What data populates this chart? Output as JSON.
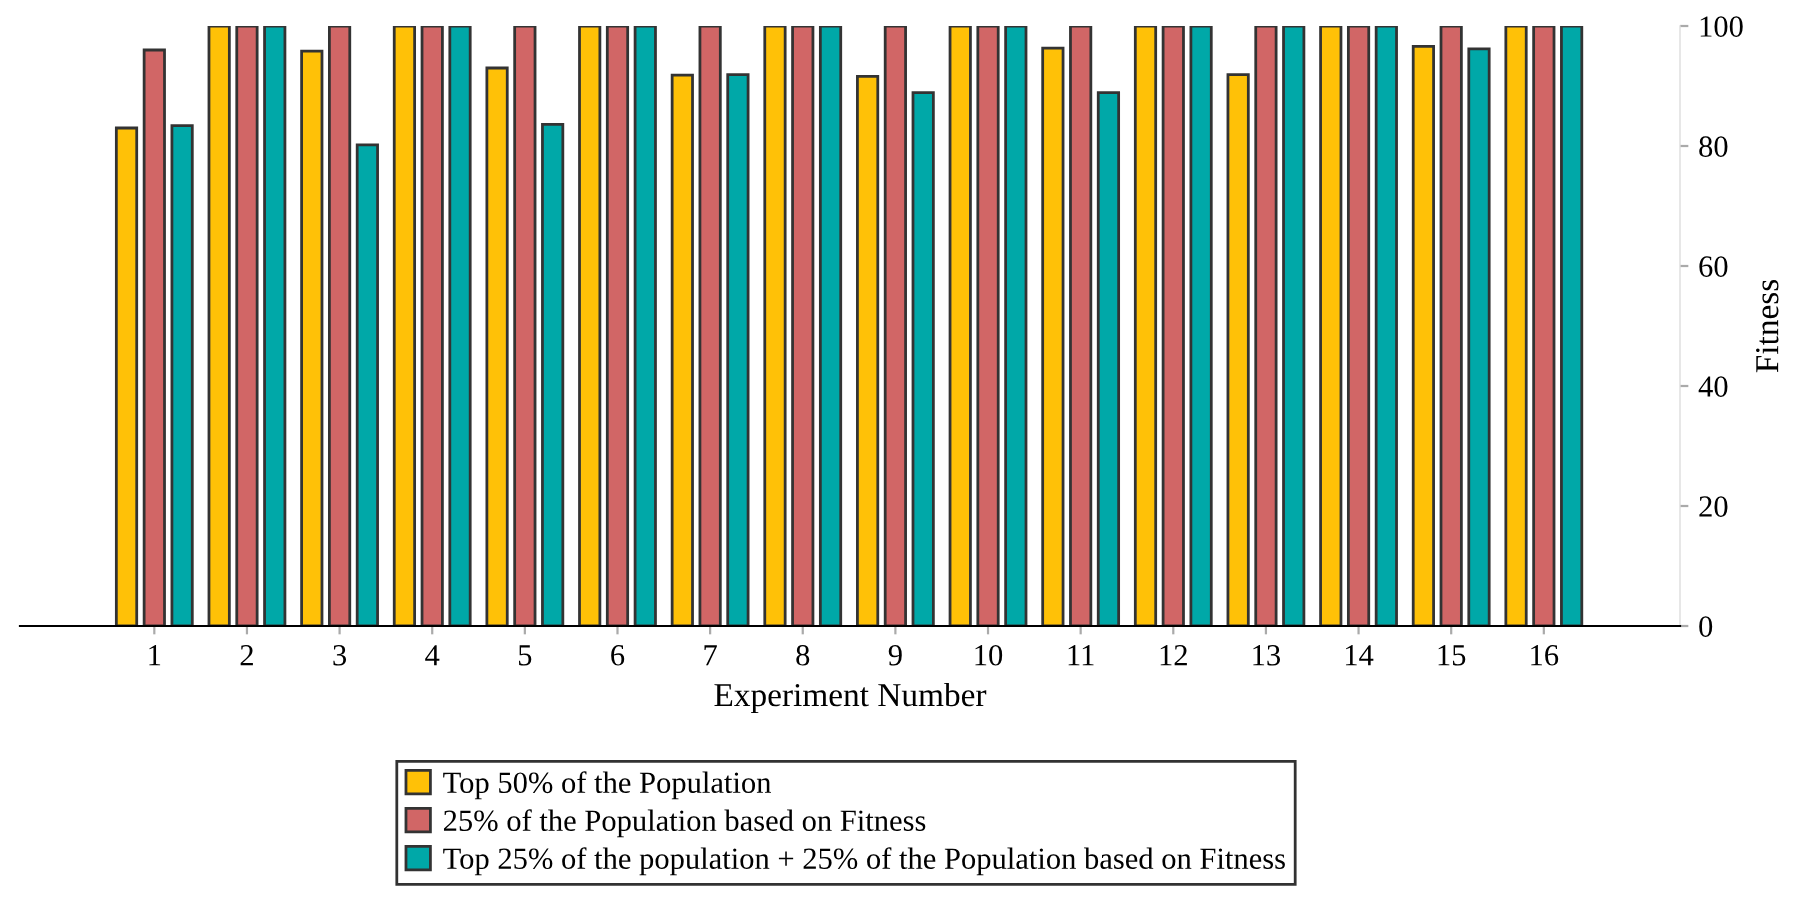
{
  "chart_data": {
    "type": "bar",
    "xlabel": "Experiment Number",
    "ylabel": "Fitness",
    "categories": [
      "1",
      "2",
      "3",
      "4",
      "5",
      "6",
      "7",
      "8",
      "9",
      "10",
      "11",
      "12",
      "13",
      "14",
      "15",
      "16"
    ],
    "series": [
      {
        "name": "Top 50% of the Population",
        "color": "#ffc107",
        "values": [
          83,
          100,
          95.8,
          100,
          93,
          100,
          91.8,
          100,
          91.6,
          100,
          96.3,
          100,
          91.9,
          100,
          96.6,
          100
        ]
      },
      {
        "name": "25% of the Population based on Fitness",
        "color": "#d16666",
        "values": [
          96,
          100,
          100,
          100,
          100,
          100,
          100,
          100,
          100,
          100,
          100,
          100,
          100,
          100,
          100,
          100
        ]
      },
      {
        "name": "Top 25% of the population + 25% of the Population based on Fitness",
        "color": "#00a8a8",
        "values": [
          83.4,
          100,
          80.2,
          100,
          83.6,
          100,
          91.9,
          100,
          88.9,
          100,
          88.9,
          100,
          100,
          100,
          96.2,
          100
        ]
      }
    ],
    "ylim": [
      0,
      100
    ],
    "yticks": [
      0,
      20,
      40,
      60,
      80,
      100
    ],
    "grid": false,
    "legend": "bottom"
  }
}
